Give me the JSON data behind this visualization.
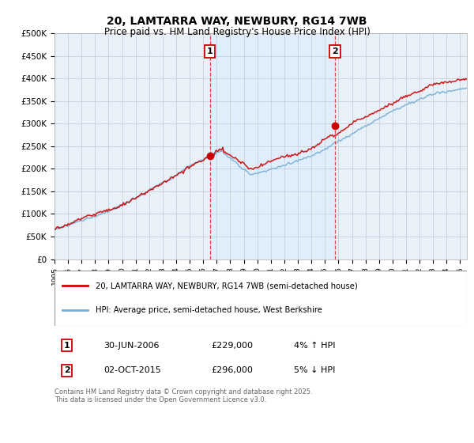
{
  "title": "20, LAMTARRA WAY, NEWBURY, RG14 7WB",
  "subtitle": "Price paid vs. HM Land Registry's House Price Index (HPI)",
  "ylabel_ticks": [
    "£0",
    "£50K",
    "£100K",
    "£150K",
    "£200K",
    "£250K",
    "£300K",
    "£350K",
    "£400K",
    "£450K",
    "£500K"
  ],
  "ytick_values": [
    0,
    50000,
    100000,
    150000,
    200000,
    250000,
    300000,
    350000,
    400000,
    450000,
    500000
  ],
  "ylim": [
    0,
    500000
  ],
  "xlim_start": 1995.0,
  "xlim_end": 2025.5,
  "marker1_x": 2006.5,
  "marker1_y": 229000,
  "marker2_x": 2015.75,
  "marker2_y": 296000,
  "marker1_date": "30-JUN-2006",
  "marker1_price": "£229,000",
  "marker1_hpi": "4% ↑ HPI",
  "marker2_date": "02-OCT-2015",
  "marker2_price": "£296,000",
  "marker2_hpi": "5% ↓ HPI",
  "legend_line1": "20, LAMTARRA WAY, NEWBURY, RG14 7WB (semi-detached house)",
  "legend_line2": "HPI: Average price, semi-detached house, West Berkshire",
  "footer": "Contains HM Land Registry data © Crown copyright and database right 2025.\nThis data is licensed under the Open Government Licence v3.0.",
  "line_color_red": "#cc0000",
  "line_color_blue": "#7ab0d4",
  "marker_box_color": "#cc0000",
  "vline_color": "#dd4444",
  "shade_color": "#ddeeff",
  "background_color": "#e8f0f8",
  "grid_color": "#c0c8d8",
  "title_fontsize": 10,
  "subtitle_fontsize": 8.5,
  "tick_fontsize": 7.5
}
